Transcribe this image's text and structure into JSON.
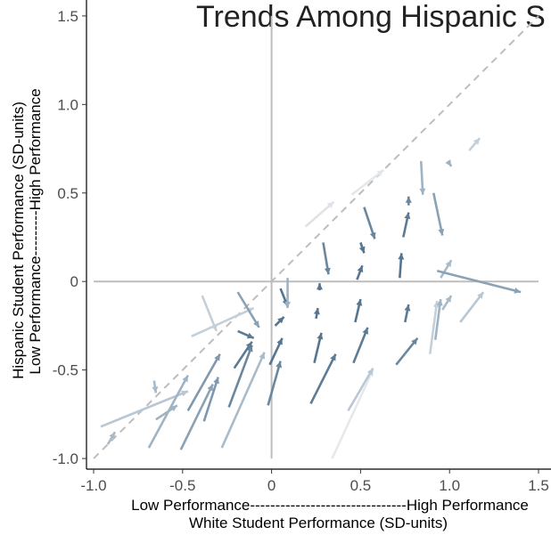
{
  "chart_data": {
    "type": "arrow",
    "title": "Trends Among Hispanic S",
    "x_label_top": "Low Performance-------------------------------High Performance",
    "x_label": "White Student Performance (SD-units)",
    "y_label": "Hispanic Student Performance (SD-units)",
    "y_label_bottom": "Low Performance---------High Performance",
    "xlim": [
      -1.04,
      1.57
    ],
    "ylim": [
      -1.06,
      1.59
    ],
    "xticks": [
      {
        "value": -1,
        "label": "-1.0"
      },
      -0.5,
      0,
      0.5,
      {
        "value": 1,
        "label": "1.0"
      },
      1.5
    ],
    "yticks": [
      {
        "value": -1,
        "label": "-1.0"
      },
      -0.5,
      0,
      0.5,
      {
        "value": 1,
        "label": "1.0"
      },
      1.5
    ],
    "hline": 0,
    "vline": 0,
    "diagonal": true,
    "reference_color": "#bdbdbd",
    "arrows": [
      {
        "x": [
          -0.96,
          -0.47
        ],
        "y": [
          -0.82,
          -0.62
        ],
        "color": "#b8c7d3"
      },
      {
        "x": [
          -0.92,
          -0.88
        ],
        "y": [
          -0.92,
          -0.85
        ],
        "color": "#a9bac8"
      },
      {
        "x": [
          -0.66,
          -0.65
        ],
        "y": [
          -0.56,
          -0.63
        ],
        "color": "#a9bac8"
      },
      {
        "x": [
          -0.69,
          -0.47
        ],
        "y": [
          -0.94,
          -0.53
        ],
        "color": "#9fb3c3"
      },
      {
        "x": [
          -0.65,
          -0.53
        ],
        "y": [
          -0.78,
          -0.7
        ],
        "color": "#9fb3c3"
      },
      {
        "x": [
          -0.51,
          -0.33
        ],
        "y": [
          -0.95,
          -0.58
        ],
        "color": "#8aa2b5"
      },
      {
        "x": [
          -0.47,
          -0.29
        ],
        "y": [
          -0.73,
          -0.41
        ],
        "color": "#7f98ad"
      },
      {
        "x": [
          -0.38,
          -0.3
        ],
        "y": [
          -0.79,
          -0.54
        ],
        "color": "#7f98ad"
      },
      {
        "x": [
          -0.28,
          -0.04
        ],
        "y": [
          -0.94,
          -0.4
        ],
        "color": "#a9bac8"
      },
      {
        "x": [
          -0.24,
          -0.11
        ],
        "y": [
          -0.71,
          -0.36
        ],
        "color": "#6a879e"
      },
      {
        "x": [
          -0.21,
          -0.11
        ],
        "y": [
          -0.49,
          -0.34
        ],
        "color": "#5d7b93"
      },
      {
        "x": [
          -0.39,
          -0.31
        ],
        "y": [
          -0.08,
          -0.28
        ],
        "color": "#c3d0da"
      },
      {
        "x": [
          -0.45,
          -0.1
        ],
        "y": [
          -0.31,
          -0.15
        ],
        "color": "#c3d0da"
      },
      {
        "x": [
          -0.19,
          -0.07
        ],
        "y": [
          -0.06,
          -0.26
        ],
        "color": "#8aa2b5"
      },
      {
        "x": [
          -0.19,
          -0.1
        ],
        "y": [
          -0.28,
          -0.32
        ],
        "color": "#5d7b93"
      },
      {
        "x": [
          -0.02,
          0.05
        ],
        "y": [
          -0.7,
          -0.45
        ],
        "color": "#6a879e"
      },
      {
        "x": [
          -0.01,
          0.06
        ],
        "y": [
          -0.47,
          -0.32
        ],
        "color": "#567590"
      },
      {
        "x": [
          0.02,
          0.07
        ],
        "y": [
          -0.25,
          -0.2
        ],
        "color": "#567590"
      },
      {
        "x": [
          0.05,
          0.09
        ],
        "y": [
          -0.04,
          -0.14
        ],
        "color": "#567590"
      },
      {
        "x": [
          0.09,
          0.09
        ],
        "y": [
          0.02,
          -0.15
        ],
        "color": "#9fb3c3"
      },
      {
        "x": [
          0.19,
          0.35
        ],
        "y": [
          0.31,
          0.45
        ],
        "color": "#dde3e8"
      },
      {
        "x": [
          0.22,
          0.36
        ],
        "y": [
          -0.69,
          -0.41
        ],
        "color": "#5d7b93"
      },
      {
        "x": [
          0.24,
          0.28
        ],
        "y": [
          -0.46,
          -0.29
        ],
        "color": "#567590"
      },
      {
        "x": [
          0.25,
          0.26
        ],
        "y": [
          -0.21,
          -0.15
        ],
        "color": "#567590"
      },
      {
        "x": [
          0.27,
          0.27
        ],
        "y": [
          -0.05,
          -0.01
        ],
        "color": "#567590"
      },
      {
        "x": [
          0.29,
          0.32
        ],
        "y": [
          0.22,
          0.04
        ],
        "color": "#6a879e"
      },
      {
        "x": [
          0.34,
          0.57
        ],
        "y": [
          -1.0,
          -0.5
        ],
        "color": "#e6e9ec"
      },
      {
        "x": [
          0.43,
          0.57
        ],
        "y": [
          -0.73,
          -0.49
        ],
        "color": "#b8c7d3"
      },
      {
        "x": [
          0.46,
          0.54
        ],
        "y": [
          -0.46,
          -0.26
        ],
        "color": "#5d7b93"
      },
      {
        "x": [
          0.47,
          0.5
        ],
        "y": [
          -0.23,
          -0.1
        ],
        "color": "#567590"
      },
      {
        "x": [
          0.48,
          0.51
        ],
        "y": [
          0.01,
          0.09
        ],
        "color": "#567590"
      },
      {
        "x": [
          0.5,
          0.52
        ],
        "y": [
          0.22,
          0.16
        ],
        "color": "#567590"
      },
      {
        "x": [
          0.52,
          0.58
        ],
        "y": [
          0.42,
          0.24
        ],
        "color": "#6a879e"
      },
      {
        "x": [
          0.45,
          0.63
        ],
        "y": [
          0.49,
          0.63
        ],
        "color": "#e3e8ec"
      },
      {
        "x": [
          0.7,
          0.82
        ],
        "y": [
          -0.47,
          -0.32
        ],
        "color": "#6a879e"
      },
      {
        "x": [
          0.72,
          0.73
        ],
        "y": [
          0.02,
          0.16
        ],
        "color": "#567590"
      },
      {
        "x": [
          0.74,
          0.77
        ],
        "y": [
          0.25,
          0.39
        ],
        "color": "#5d7b93"
      },
      {
        "x": [
          0.75,
          0.77
        ],
        "y": [
          -0.23,
          -0.13
        ],
        "color": "#5d7b93"
      },
      {
        "x": [
          0.77,
          0.77
        ],
        "y": [
          0.43,
          0.48
        ],
        "color": "#6a879e"
      },
      {
        "x": [
          0.84,
          0.85
        ],
        "y": [
          0.68,
          0.49
        ],
        "color": "#9fb3c3"
      },
      {
        "x": [
          0.89,
          0.93
        ],
        "y": [
          -0.41,
          -0.11
        ],
        "color": "#c3d0da"
      },
      {
        "x": [
          0.92,
          0.95
        ],
        "y": [
          -0.33,
          -0.1
        ],
        "color": "#9fb3c3"
      },
      {
        "x": [
          0.91,
          0.96
        ],
        "y": [
          0.5,
          0.26
        ],
        "color": "#8aa2b5"
      },
      {
        "x": [
          0.95,
          1.01
        ],
        "y": [
          0.02,
          0.12
        ],
        "color": "#a9bac8"
      },
      {
        "x": [
          0.93,
          1.4
        ],
        "y": [
          0.06,
          -0.06
        ],
        "color": "#8aa2b5"
      },
      {
        "x": [
          0.96,
          1.01
        ],
        "y": [
          -0.16,
          -0.08
        ],
        "color": "#a9bac8"
      },
      {
        "x": [
          0.99,
          1.01
        ],
        "y": [
          0.68,
          0.65
        ],
        "color": "#9fb3c3"
      },
      {
        "x": [
          1.06,
          1.19
        ],
        "y": [
          -0.23,
          -0.06
        ],
        "color": "#b8c7d3"
      },
      {
        "x": [
          1.11,
          1.17
        ],
        "y": [
          0.74,
          0.81
        ],
        "color": "#c3d0da"
      }
    ]
  }
}
